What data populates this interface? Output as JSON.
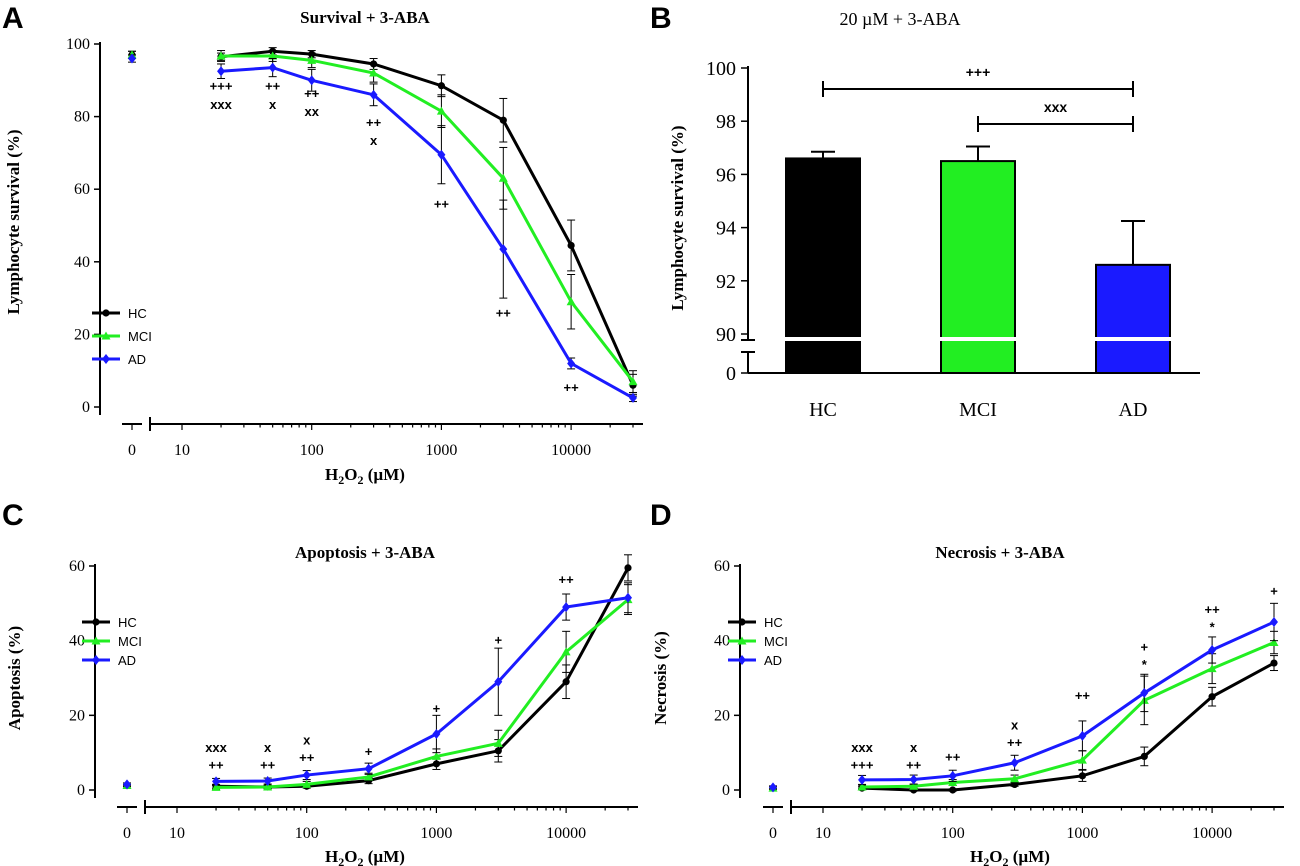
{
  "colors": {
    "HC": "#000000",
    "MCI": "#22ee22",
    "AD": "#1a1aff"
  },
  "panels": [
    {
      "id": "A",
      "letter": "A"
    },
    {
      "id": "B",
      "letter": "B"
    },
    {
      "id": "C",
      "letter": "C"
    },
    {
      "id": "D",
      "letter": "D"
    }
  ],
  "chart_data": [
    {
      "id": "A",
      "type": "line",
      "title": "Survival + 3-ABA",
      "xlabel": "H2O2 (µM)",
      "ylabel": "Lymphocyte survival (%)",
      "xscale": "log",
      "x": [
        0,
        20,
        50,
        100,
        300,
        1000,
        3000,
        10000,
        30000
      ],
      "xticks": [
        {
          "value": 0,
          "label": "0"
        },
        {
          "value": 10,
          "label": "10"
        },
        {
          "value": 100,
          "label": "100"
        },
        {
          "value": 1000,
          "label": "1000"
        },
        {
          "value": 10000,
          "label": "10000"
        }
      ],
      "yticks": [
        0,
        20,
        40,
        60,
        80,
        100
      ],
      "ylim": [
        0,
        100
      ],
      "legend": "left",
      "series": [
        {
          "name": "HC",
          "marker": "circle",
          "values": [
            97,
            96.5,
            98,
            97.2,
            94.5,
            88.5,
            79,
            44.5,
            6
          ],
          "err": [
            1,
            1,
            1,
            1,
            1.5,
            3,
            6,
            7,
            3
          ]
        },
        {
          "name": "MCI",
          "marker": "triangle",
          "values": [
            97,
            96.7,
            96.7,
            95.5,
            92,
            81.5,
            63,
            29,
            7
          ],
          "err": [
            1,
            1.5,
            1.5,
            2,
            2.5,
            4.5,
            8.5,
            7.5,
            3
          ]
        },
        {
          "name": "AD",
          "marker": "diamond",
          "values": [
            96,
            92.5,
            93.5,
            90,
            86,
            69.5,
            43.5,
            12,
            2.5
          ],
          "err": [
            1,
            2,
            2.5,
            3,
            3,
            8,
            13.5,
            1.5,
            1
          ]
        }
      ],
      "annotations": [
        {
          "x": 20,
          "y": 88.5,
          "text": "+++"
        },
        {
          "x": 20,
          "y": 83.5,
          "text": "xxx"
        },
        {
          "x": 50,
          "y": 88.5,
          "text": "++"
        },
        {
          "x": 50,
          "y": 83.5,
          "text": "x"
        },
        {
          "x": 100,
          "y": 86.5,
          "text": "++"
        },
        {
          "x": 100,
          "y": 81.5,
          "text": "xx"
        },
        {
          "x": 300,
          "y": 78.5,
          "text": "++"
        },
        {
          "x": 300,
          "y": 73.5,
          "text": "x"
        },
        {
          "x": 1000,
          "y": 56,
          "text": "++"
        },
        {
          "x": 3000,
          "y": 26,
          "text": "++"
        },
        {
          "x": 10000,
          "y": 5.5,
          "text": "++"
        }
      ]
    },
    {
      "id": "B",
      "type": "bar",
      "title": "20 µM + 3-ABA",
      "ylabel": "Lymphocyte survival (%)",
      "categories": [
        "HC",
        "MCI",
        "AD"
      ],
      "values": [
        96.6,
        96.5,
        92.6
      ],
      "err": [
        0.25,
        0.55,
        1.65
      ],
      "yticks_upper": [
        90,
        92,
        94,
        96,
        98,
        100
      ],
      "yticks_lower": [
        0
      ],
      "ylim_upper": [
        90,
        100
      ],
      "axis_break": "89-90",
      "significance": [
        {
          "from": "HC",
          "to": "AD",
          "text": "+++"
        },
        {
          "from": "MCI",
          "to": "AD",
          "text": "xxx"
        }
      ]
    },
    {
      "id": "C",
      "type": "line",
      "title": "Apoptosis + 3-ABA",
      "xlabel": "H2O2 (µM)",
      "ylabel": "Apoptosis (%)",
      "xscale": "log",
      "x": [
        0,
        20,
        50,
        100,
        300,
        1000,
        3000,
        10000,
        30000
      ],
      "xticks": [
        {
          "value": 0,
          "label": "0"
        },
        {
          "value": 10,
          "label": "10"
        },
        {
          "value": 100,
          "label": "100"
        },
        {
          "value": 1000,
          "label": "1000"
        },
        {
          "value": 10000,
          "label": "10000"
        }
      ],
      "yticks": [
        0,
        20,
        40,
        60
      ],
      "ylim": [
        0,
        60
      ],
      "legend": "top-left",
      "series": [
        {
          "name": "HC",
          "marker": "circle",
          "values": [
            1.2,
            1,
            0.8,
            1,
            2.5,
            7,
            10.5,
            29,
            59.5
          ],
          "err": [
            0.3,
            0.5,
            0.4,
            0.5,
            0.8,
            1.5,
            3,
            4.5,
            3.5
          ]
        },
        {
          "name": "MCI",
          "marker": "triangle",
          "values": [
            1.2,
            0.7,
            0.8,
            1.5,
            3.5,
            9,
            12.5,
            37,
            51
          ],
          "err": [
            0.3,
            0.5,
            0.5,
            0.8,
            1,
            2,
            3.5,
            5.5,
            4
          ]
        },
        {
          "name": "AD",
          "marker": "diamond",
          "values": [
            1.5,
            2.3,
            2.4,
            4,
            5.7,
            15,
            29,
            49,
            51.5
          ],
          "err": [
            0.4,
            0.8,
            0.8,
            1.2,
            1.5,
            5,
            9,
            3.5,
            4
          ]
        }
      ],
      "annotations": [
        {
          "x": 20,
          "y": 11.5,
          "text": "xxx"
        },
        {
          "x": 20,
          "y": 6.8,
          "text": "++"
        },
        {
          "x": 50,
          "y": 11.5,
          "text": "x"
        },
        {
          "x": 50,
          "y": 6.8,
          "text": "++"
        },
        {
          "x": 100,
          "y": 13.5,
          "text": "x"
        },
        {
          "x": 100,
          "y": 8.8,
          "text": "++"
        },
        {
          "x": 300,
          "y": 10.5,
          "text": "+"
        },
        {
          "x": 1000,
          "y": 22,
          "text": "+"
        },
        {
          "x": 3000,
          "y": 40.3,
          "text": "+"
        },
        {
          "x": 10000,
          "y": 56.5,
          "text": "++"
        }
      ]
    },
    {
      "id": "D",
      "type": "line",
      "title": "Necrosis + 3-ABA",
      "xlabel": "H2O2 (µM)",
      "ylabel": "Necrosis (%)",
      "xscale": "log",
      "x": [
        0,
        20,
        50,
        100,
        300,
        1000,
        3000,
        10000,
        30000
      ],
      "xticks": [
        {
          "value": 0,
          "label": "0"
        },
        {
          "value": 10,
          "label": "10"
        },
        {
          "value": 100,
          "label": "100"
        },
        {
          "value": 1000,
          "label": "1000"
        },
        {
          "value": 10000,
          "label": "10000"
        }
      ],
      "yticks": [
        0,
        20,
        40,
        60
      ],
      "ylim": [
        0,
        60
      ],
      "legend": "top-left",
      "series": [
        {
          "name": "HC",
          "marker": "circle",
          "values": [
            0.5,
            0.5,
            0,
            0,
            1.5,
            3.8,
            9,
            25,
            34
          ],
          "err": [
            0.3,
            0.4,
            0.3,
            0.3,
            0.5,
            1.5,
            2.5,
            2.5,
            2
          ]
        },
        {
          "name": "MCI",
          "marker": "triangle",
          "values": [
            0.5,
            0.8,
            1,
            2,
            3,
            8,
            24,
            32.5,
            39.5
          ],
          "err": [
            0.3,
            0.5,
            0.5,
            0.8,
            1,
            2.5,
            6.5,
            4,
            3
          ]
        },
        {
          "name": "AD",
          "marker": "diamond",
          "values": [
            0.7,
            2.7,
            2.8,
            3.8,
            7.3,
            14.5,
            26,
            37.5,
            45
          ],
          "err": [
            0.4,
            1.2,
            1.2,
            1.5,
            2,
            4,
            5,
            3.5,
            5
          ]
        }
      ],
      "annotations": [
        {
          "x": 20,
          "y": 11.5,
          "text": "xxx"
        },
        {
          "x": 20,
          "y": 6.8,
          "text": "+++"
        },
        {
          "x": 50,
          "y": 11.5,
          "text": "x"
        },
        {
          "x": 50,
          "y": 6.8,
          "text": "++"
        },
        {
          "x": 100,
          "y": 9,
          "text": "++"
        },
        {
          "x": 300,
          "y": 17.5,
          "text": "x"
        },
        {
          "x": 300,
          "y": 12.8,
          "text": "++"
        },
        {
          "x": 1000,
          "y": 25.5,
          "text": "++"
        },
        {
          "x": 3000,
          "y": 38.5,
          "text": "+"
        },
        {
          "x": 3000,
          "y": 33.8,
          "text": "*"
        },
        {
          "x": 10000,
          "y": 48.5,
          "text": "++"
        },
        {
          "x": 10000,
          "y": 43.8,
          "text": "*"
        },
        {
          "x": 30000,
          "y": 53.5,
          "text": "+"
        }
      ]
    }
  ]
}
